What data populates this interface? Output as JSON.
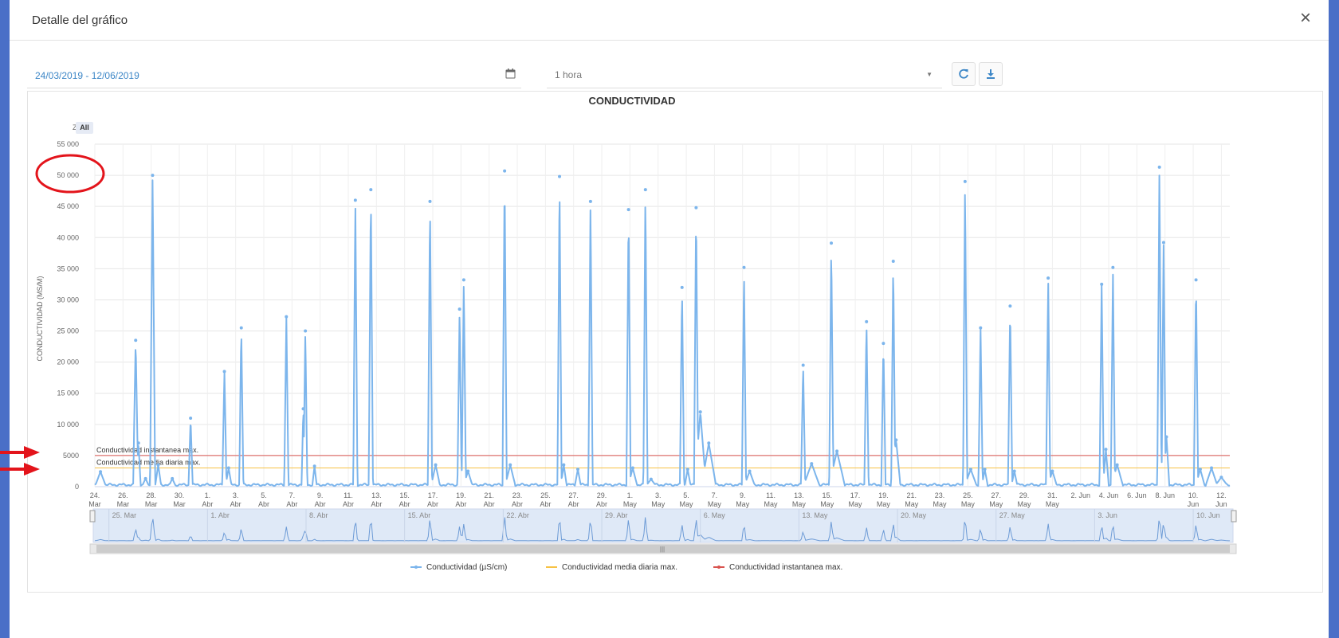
{
  "modal": {
    "title": "Detalle del gráfico",
    "close_label": "×"
  },
  "toolbar": {
    "date_range": "24/03/2019 - 12/06/2019",
    "interval": "1 hora",
    "icons": [
      "calendar-icon",
      "refresh-icon",
      "download-icon"
    ]
  },
  "chart": {
    "zoom_label": "Zoom",
    "zoom_all": "All"
  },
  "chart_data": {
    "type": "line",
    "title": "CONDUCTIVIDAD",
    "ylabel": "CONDUCTIVIDAD (MS/M)",
    "ylim": [
      0,
      55000
    ],
    "yticks": [
      0,
      5000,
      10000,
      15000,
      20000,
      25000,
      30000,
      35000,
      40000,
      45000,
      50000,
      55000
    ],
    "ytick_labels": [
      "0",
      "5000",
      "10 000",
      "15 000",
      "20 000",
      "25 000",
      "30 000",
      "35 000",
      "40 000",
      "45 000",
      "50 000",
      "55 000"
    ],
    "xlim": [
      "2019-03-24",
      "2019-06-12"
    ],
    "xticks": [
      {
        "day": 0,
        "l1": "24.",
        "l2": "Mar"
      },
      {
        "day": 2,
        "l1": "26.",
        "l2": "Mar"
      },
      {
        "day": 4,
        "l1": "28.",
        "l2": "Mar"
      },
      {
        "day": 6,
        "l1": "30.",
        "l2": "Mar"
      },
      {
        "day": 8,
        "l1": "1.",
        "l2": "Abr"
      },
      {
        "day": 10,
        "l1": "3.",
        "l2": "Abr"
      },
      {
        "day": 12,
        "l1": "5.",
        "l2": "Abr"
      },
      {
        "day": 14,
        "l1": "7.",
        "l2": "Abr"
      },
      {
        "day": 16,
        "l1": "9.",
        "l2": "Abr"
      },
      {
        "day": 18,
        "l1": "11.",
        "l2": "Abr"
      },
      {
        "day": 20,
        "l1": "13.",
        "l2": "Abr"
      },
      {
        "day": 22,
        "l1": "15.",
        "l2": "Abr"
      },
      {
        "day": 24,
        "l1": "17.",
        "l2": "Abr"
      },
      {
        "day": 26,
        "l1": "19.",
        "l2": "Abr"
      },
      {
        "day": 28,
        "l1": "21.",
        "l2": "Abr"
      },
      {
        "day": 30,
        "l1": "23.",
        "l2": "Abr"
      },
      {
        "day": 32,
        "l1": "25.",
        "l2": "Abr"
      },
      {
        "day": 34,
        "l1": "27.",
        "l2": "Abr"
      },
      {
        "day": 36,
        "l1": "29.",
        "l2": "Abr"
      },
      {
        "day": 38,
        "l1": "1.",
        "l2": "May"
      },
      {
        "day": 40,
        "l1": "3.",
        "l2": "May"
      },
      {
        "day": 42,
        "l1": "5.",
        "l2": "May"
      },
      {
        "day": 44,
        "l1": "7.",
        "l2": "May"
      },
      {
        "day": 46,
        "l1": "9.",
        "l2": "May"
      },
      {
        "day": 48,
        "l1": "11.",
        "l2": "May"
      },
      {
        "day": 50,
        "l1": "13.",
        "l2": "May"
      },
      {
        "day": 52,
        "l1": "15.",
        "l2": "May"
      },
      {
        "day": 54,
        "l1": "17.",
        "l2": "May"
      },
      {
        "day": 56,
        "l1": "19.",
        "l2": "May"
      },
      {
        "day": 58,
        "l1": "21.",
        "l2": "May"
      },
      {
        "day": 60,
        "l1": "23.",
        "l2": "May"
      },
      {
        "day": 62,
        "l1": "25.",
        "l2": "May"
      },
      {
        "day": 64,
        "l1": "27.",
        "l2": "May"
      },
      {
        "day": 66,
        "l1": "29.",
        "l2": "May"
      },
      {
        "day": 68,
        "l1": "31.",
        "l2": "May"
      },
      {
        "day": 70,
        "l1": "2. Jun",
        "l2": ""
      },
      {
        "day": 72,
        "l1": "4. Jun",
        "l2": ""
      },
      {
        "day": 74,
        "l1": "6. Jun",
        "l2": ""
      },
      {
        "day": 76,
        "l1": "8. Jun",
        "l2": ""
      },
      {
        "day": 78,
        "l1": "10.",
        "l2": "Jun"
      },
      {
        "day": 80,
        "l1": "12.",
        "l2": "Jun"
      }
    ],
    "series": [
      {
        "name": "Conductividad (µS/cm)",
        "color": "#7cb5ec",
        "baseline": 300,
        "spikes": [
          {
            "day": 0.4,
            "y": 2400,
            "w": 0.35
          },
          {
            "day": 2.9,
            "y": 23500,
            "w": 0.18
          },
          {
            "day": 3.1,
            "y": 7000,
            "w": 0.15
          },
          {
            "day": 3.6,
            "y": 1300,
            "w": 0.2
          },
          {
            "day": 4.1,
            "y": 50000,
            "w": 0.18
          },
          {
            "day": 4.5,
            "y": 3500,
            "w": 0.2
          },
          {
            "day": 5.5,
            "y": 1300,
            "w": 0.2
          },
          {
            "day": 6.8,
            "y": 11000,
            "w": 0.15
          },
          {
            "day": 9.2,
            "y": 18500,
            "w": 0.15
          },
          {
            "day": 9.5,
            "y": 3000,
            "w": 0.2
          },
          {
            "day": 10.4,
            "y": 25500,
            "w": 0.15
          },
          {
            "day": 13.6,
            "y": 27300,
            "w": 0.15
          },
          {
            "day": 14.8,
            "y": 12500,
            "w": 0.12
          },
          {
            "day": 14.95,
            "y": 25000,
            "w": 0.14
          },
          {
            "day": 15.6,
            "y": 3300,
            "w": 0.15
          },
          {
            "day": 18.5,
            "y": 46000,
            "w": 0.15
          },
          {
            "day": 19.6,
            "y": 47700,
            "w": 0.15
          },
          {
            "day": 23.8,
            "y": 45800,
            "w": 0.15
          },
          {
            "day": 24.2,
            "y": 3500,
            "w": 0.3
          },
          {
            "day": 25.9,
            "y": 28500,
            "w": 0.15
          },
          {
            "day": 26.2,
            "y": 33200,
            "w": 0.15
          },
          {
            "day": 26.5,
            "y": 2500,
            "w": 0.3
          },
          {
            "day": 29.1,
            "y": 50700,
            "w": 0.15
          },
          {
            "day": 29.5,
            "y": 3500,
            "w": 0.35
          },
          {
            "day": 33.0,
            "y": 49800,
            "w": 0.15
          },
          {
            "day": 33.3,
            "y": 3500,
            "w": 0.2
          },
          {
            "day": 34.3,
            "y": 2800,
            "w": 0.2
          },
          {
            "day": 35.2,
            "y": 45800,
            "w": 0.15
          },
          {
            "day": 37.9,
            "y": 44500,
            "w": 0.15
          },
          {
            "day": 38.2,
            "y": 3000,
            "w": 0.3
          },
          {
            "day": 39.1,
            "y": 47700,
            "w": 0.15
          },
          {
            "day": 39.5,
            "y": 1200,
            "w": 0.3
          },
          {
            "day": 41.7,
            "y": 32000,
            "w": 0.15
          },
          {
            "day": 42.1,
            "y": 2800,
            "w": 0.2
          },
          {
            "day": 42.7,
            "y": 44800,
            "w": 0.15
          },
          {
            "day": 43.0,
            "y": 12000,
            "w": 0.4
          },
          {
            "day": 43.6,
            "y": 7000,
            "w": 0.5
          },
          {
            "day": 46.1,
            "y": 35200,
            "w": 0.15
          },
          {
            "day": 46.5,
            "y": 2500,
            "w": 0.35
          },
          {
            "day": 50.3,
            "y": 19500,
            "w": 0.15
          },
          {
            "day": 50.9,
            "y": 3700,
            "w": 0.55
          },
          {
            "day": 52.3,
            "y": 39100,
            "w": 0.15
          },
          {
            "day": 52.7,
            "y": 5700,
            "w": 0.55
          },
          {
            "day": 54.8,
            "y": 26500,
            "w": 0.15
          },
          {
            "day": 56.0,
            "y": 23000,
            "w": 0.15
          },
          {
            "day": 56.7,
            "y": 36200,
            "w": 0.15
          },
          {
            "day": 56.9,
            "y": 7500,
            "w": 0.3
          },
          {
            "day": 61.8,
            "y": 49000,
            "w": 0.15
          },
          {
            "day": 62.2,
            "y": 2800,
            "w": 0.4
          },
          {
            "day": 62.9,
            "y": 25500,
            "w": 0.15
          },
          {
            "day": 63.2,
            "y": 2800,
            "w": 0.2
          },
          {
            "day": 65.0,
            "y": 29000,
            "w": 0.15
          },
          {
            "day": 65.3,
            "y": 2500,
            "w": 0.2
          },
          {
            "day": 67.7,
            "y": 33500,
            "w": 0.15
          },
          {
            "day": 68.0,
            "y": 2500,
            "w": 0.3
          },
          {
            "day": 71.5,
            "y": 32500,
            "w": 0.15
          },
          {
            "day": 71.8,
            "y": 6000,
            "w": 0.2
          },
          {
            "day": 72.3,
            "y": 35200,
            "w": 0.15
          },
          {
            "day": 72.6,
            "y": 3500,
            "w": 0.4
          },
          {
            "day": 75.6,
            "y": 51300,
            "w": 0.15
          },
          {
            "day": 75.9,
            "y": 39200,
            "w": 0.15
          },
          {
            "day": 76.1,
            "y": 8000,
            "w": 0.2
          },
          {
            "day": 78.2,
            "y": 33200,
            "w": 0.15
          },
          {
            "day": 78.5,
            "y": 2800,
            "w": 0.3
          },
          {
            "day": 79.3,
            "y": 3000,
            "w": 0.4
          },
          {
            "day": 80.0,
            "y": 1500,
            "w": 0.4
          }
        ]
      },
      {
        "name": "Conductividad media diaria max.",
        "color": "#f7c244",
        "constant": 3000,
        "label": "Conductividad media diaria max."
      },
      {
        "name": "Conductividad instantanea max.",
        "color": "#d9534f",
        "constant": 5000,
        "label": "Conductividad instantanea max."
      }
    ],
    "navigator": {
      "labels": [
        "25. Mar",
        "1. Abr",
        "8. Abr",
        "15. Abr",
        "22. Abr",
        "29. Abr",
        "6. May",
        "13. May",
        "20. May",
        "27. May",
        "3. Jun",
        "10. Jun"
      ],
      "label_days": [
        1,
        8,
        15,
        22,
        29,
        36,
        43,
        50,
        57,
        64,
        71,
        78
      ]
    },
    "legend": {
      "position": "bottom-center",
      "items": [
        "Conductividad (µS/cm)",
        "Conductividad media diaria max.",
        "Conductividad instantanea max."
      ]
    },
    "grid": true
  },
  "annotations": {
    "circle_color": "#e3141b",
    "arrow_color": "#e3141b"
  }
}
